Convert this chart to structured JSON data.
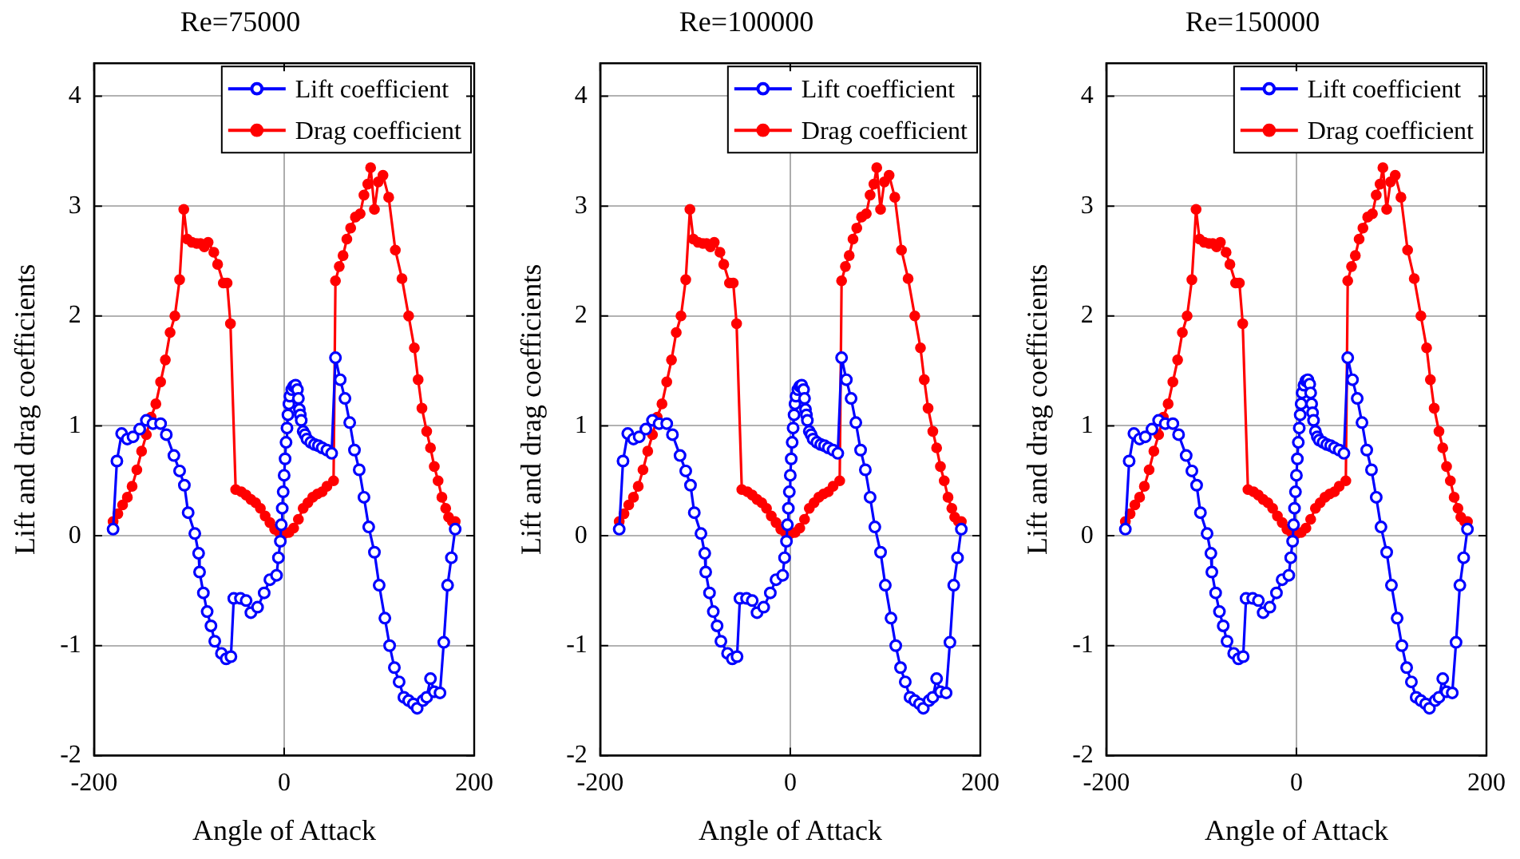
{
  "chart_data": [
    {
      "type": "line",
      "title": "Re=75000",
      "xlabel": "Angle of Attack",
      "ylabel": "Lift and drag coefficients",
      "xlim": [
        -200,
        200
      ],
      "xticks": [
        -200,
        0,
        200
      ],
      "ylim": [
        -2,
        4.3
      ],
      "yticks": [
        -2,
        -1,
        0,
        1,
        2,
        3,
        4
      ],
      "grid": true,
      "legend": "top right",
      "marker": "circle",
      "series": [
        {
          "name": "Lift coefficient",
          "color": "#0000ff",
          "x": [
            -180,
            -176,
            -171,
            -165,
            -159,
            -152,
            -145,
            -138,
            -130,
            -124,
            -116,
            -110,
            -105,
            -101,
            -94,
            -90,
            -89,
            -85,
            -81,
            -77,
            -73,
            -66,
            -61,
            -56,
            -53,
            -46,
            -40,
            -35,
            -28,
            -21,
            -15,
            -8,
            -6,
            -4,
            -3,
            -2,
            -1,
            0,
            1,
            2,
            3,
            4,
            5,
            6,
            8,
            10,
            12,
            14,
            15,
            16,
            17,
            18,
            20,
            22,
            24,
            28,
            32,
            36,
            40,
            45,
            50,
            54,
            59,
            64,
            69,
            74,
            79,
            84,
            89,
            95,
            100,
            106,
            111,
            116,
            121,
            126,
            131,
            136,
            140,
            146,
            150,
            154,
            158,
            164,
            168,
            172,
            176,
            180
          ],
          "values": [
            0.06,
            0.68,
            0.93,
            0.88,
            0.9,
            0.97,
            1.05,
            1.02,
            1.02,
            0.92,
            0.73,
            0.59,
            0.46,
            0.21,
            0.02,
            -0.16,
            -0.33,
            -0.52,
            -0.69,
            -0.82,
            -0.96,
            -1.07,
            -1.12,
            -1.1,
            -0.57,
            -0.57,
            -0.59,
            -0.7,
            -0.65,
            -0.52,
            -0.4,
            -0.36,
            -0.2,
            -0.05,
            0.1,
            0.25,
            0.4,
            0.55,
            0.7,
            0.85,
            0.98,
            1.1,
            1.2,
            1.27,
            1.33,
            1.36,
            1.37,
            1.33,
            1.25,
            1.15,
            1.1,
            1.05,
            0.95,
            0.92,
            0.88,
            0.85,
            0.83,
            0.82,
            0.8,
            0.78,
            0.75,
            1.62,
            1.42,
            1.25,
            1.03,
            0.78,
            0.6,
            0.35,
            0.08,
            -0.15,
            -0.45,
            -0.75,
            -1.0,
            -1.2,
            -1.33,
            -1.47,
            -1.5,
            -1.53,
            -1.57,
            -1.5,
            -1.47,
            -1.3,
            -1.42,
            -1.43,
            -0.97,
            -0.45,
            -0.2,
            0.06
          ]
        },
        {
          "name": "Drag coefficient",
          "color": "#ff0000",
          "x": [
            -180,
            -175,
            -170,
            -165,
            -160,
            -155,
            -150,
            -145,
            -140,
            -135,
            -130,
            -125,
            -120,
            -115,
            -110,
            -105.6,
            -102,
            -97,
            -92,
            -88,
            -84,
            -80,
            -74,
            -70,
            -64,
            -60,
            -56.5,
            -51,
            -45,
            -40,
            -35,
            -30,
            -25,
            -20,
            -15,
            -10,
            -5,
            0,
            5,
            10,
            15,
            20,
            25,
            30,
            35,
            40,
            45,
            52,
            54,
            58,
            62,
            66,
            70,
            75,
            80,
            84,
            88,
            91,
            95,
            99,
            104,
            110,
            117,
            124,
            131,
            137,
            141,
            145,
            150,
            154,
            158,
            162,
            166,
            170,
            173,
            177,
            180
          ],
          "values": [
            0.13,
            0.2,
            0.28,
            0.35,
            0.45,
            0.6,
            0.77,
            0.92,
            1.08,
            1.2,
            1.4,
            1.6,
            1.85,
            2.0,
            2.33,
            2.97,
            2.7,
            2.67,
            2.66,
            2.66,
            2.63,
            2.67,
            2.58,
            2.47,
            2.3,
            2.3,
            1.93,
            0.42,
            0.4,
            0.37,
            0.33,
            0.3,
            0.25,
            0.18,
            0.12,
            0.06,
            0.03,
            0.02,
            0.03,
            0.07,
            0.15,
            0.25,
            0.3,
            0.35,
            0.38,
            0.4,
            0.45,
            0.5,
            2.32,
            2.45,
            2.55,
            2.7,
            2.8,
            2.9,
            2.93,
            3.1,
            3.2,
            3.35,
            2.97,
            3.22,
            3.28,
            3.08,
            2.6,
            2.34,
            2.0,
            1.71,
            1.42,
            1.16,
            0.95,
            0.8,
            0.63,
            0.5,
            0.35,
            0.25,
            0.17,
            0.13,
            0.13
          ]
        }
      ]
    },
    {
      "type": "line",
      "title": "Re=100000",
      "xlabel": "Angle of Attack",
      "ylabel": "Lift and drag coefficients",
      "xlim": [
        -200,
        200
      ],
      "xticks": [
        -200,
        0,
        200
      ],
      "ylim": [
        -2,
        4.3
      ],
      "yticks": [
        -2,
        -1,
        0,
        1,
        2,
        3,
        4
      ],
      "grid": true,
      "legend": "top right",
      "marker": "circle",
      "series": [
        {
          "name": "Lift coefficient",
          "color": "#0000ff",
          "x": [
            -180,
            -176,
            -171,
            -165,
            -159,
            -152,
            -145,
            -138,
            -130,
            -124,
            -116,
            -110,
            -105,
            -101,
            -94,
            -90,
            -89,
            -85,
            -81,
            -77,
            -73,
            -66,
            -61,
            -56,
            -53,
            -46,
            -40,
            -35,
            -28,
            -21,
            -15,
            -8,
            -6,
            -4,
            -3,
            -2,
            -1,
            0,
            1,
            2,
            3,
            4,
            5,
            6,
            8,
            10,
            12,
            14,
            15,
            16,
            17,
            18,
            20,
            22,
            24,
            28,
            32,
            36,
            40,
            45,
            50,
            54,
            59,
            64,
            69,
            74,
            79,
            84,
            89,
            95,
            100,
            106,
            111,
            116,
            121,
            126,
            131,
            136,
            140,
            146,
            150,
            154,
            158,
            164,
            168,
            172,
            176,
            180
          ],
          "values": [
            0.06,
            0.68,
            0.93,
            0.88,
            0.9,
            0.97,
            1.05,
            1.02,
            1.02,
            0.92,
            0.73,
            0.59,
            0.46,
            0.21,
            0.02,
            -0.16,
            -0.33,
            -0.52,
            -0.69,
            -0.82,
            -0.96,
            -1.07,
            -1.12,
            -1.1,
            -0.57,
            -0.57,
            -0.59,
            -0.7,
            -0.65,
            -0.52,
            -0.4,
            -0.36,
            -0.2,
            -0.05,
            0.1,
            0.25,
            0.4,
            0.55,
            0.7,
            0.85,
            0.98,
            1.1,
            1.2,
            1.27,
            1.33,
            1.36,
            1.37,
            1.33,
            1.25,
            1.15,
            1.1,
            1.05,
            0.95,
            0.92,
            0.88,
            0.85,
            0.83,
            0.82,
            0.8,
            0.78,
            0.75,
            1.62,
            1.42,
            1.25,
            1.03,
            0.78,
            0.6,
            0.35,
            0.08,
            -0.15,
            -0.45,
            -0.75,
            -1.0,
            -1.2,
            -1.33,
            -1.47,
            -1.5,
            -1.53,
            -1.57,
            -1.5,
            -1.47,
            -1.3,
            -1.42,
            -1.43,
            -0.97,
            -0.45,
            -0.2,
            0.06
          ]
        },
        {
          "name": "Drag coefficient",
          "color": "#ff0000",
          "x": [
            -180,
            -175,
            -170,
            -165,
            -160,
            -155,
            -150,
            -145,
            -140,
            -135,
            -130,
            -125,
            -120,
            -115,
            -110,
            -105.6,
            -102,
            -97,
            -92,
            -88,
            -84,
            -80,
            -74,
            -70,
            -64,
            -60,
            -56.5,
            -51,
            -45,
            -40,
            -35,
            -30,
            -25,
            -20,
            -15,
            -10,
            -5,
            0,
            5,
            10,
            15,
            20,
            25,
            30,
            35,
            40,
            45,
            52,
            54,
            58,
            62,
            66,
            70,
            75,
            80,
            84,
            88,
            91,
            95,
            99,
            104,
            110,
            117,
            124,
            131,
            137,
            141,
            145,
            150,
            154,
            158,
            162,
            166,
            170,
            173,
            177,
            180
          ],
          "values": [
            0.13,
            0.2,
            0.28,
            0.35,
            0.45,
            0.6,
            0.77,
            0.92,
            1.08,
            1.2,
            1.4,
            1.6,
            1.85,
            2.0,
            2.33,
            2.97,
            2.7,
            2.67,
            2.66,
            2.66,
            2.63,
            2.67,
            2.58,
            2.47,
            2.3,
            2.3,
            1.93,
            0.42,
            0.4,
            0.37,
            0.33,
            0.3,
            0.25,
            0.18,
            0.12,
            0.06,
            0.03,
            0.02,
            0.03,
            0.07,
            0.15,
            0.25,
            0.3,
            0.35,
            0.38,
            0.4,
            0.45,
            0.5,
            2.32,
            2.45,
            2.55,
            2.7,
            2.8,
            2.9,
            2.93,
            3.1,
            3.2,
            3.35,
            2.97,
            3.22,
            3.28,
            3.08,
            2.6,
            2.34,
            2.0,
            1.71,
            1.42,
            1.16,
            0.95,
            0.8,
            0.63,
            0.5,
            0.35,
            0.25,
            0.17,
            0.13,
            0.13
          ]
        }
      ]
    },
    {
      "type": "line",
      "title": "Re=150000",
      "xlabel": "Angle of Attack",
      "ylabel": "Lift and drag coefficients",
      "xlim": [
        -200,
        200
      ],
      "xticks": [
        -200,
        0,
        200
      ],
      "ylim": [
        -2,
        4.3
      ],
      "yticks": [
        -2,
        -1,
        0,
        1,
        2,
        3,
        4
      ],
      "grid": true,
      "legend": "top right",
      "marker": "circle",
      "series": [
        {
          "name": "Lift coefficient",
          "color": "#0000ff",
          "x": [
            -180,
            -176,
            -171,
            -165,
            -159,
            -152,
            -145,
            -138,
            -130,
            -124,
            -116,
            -110,
            -105,
            -101,
            -94,
            -90,
            -89,
            -85,
            -81,
            -77,
            -73,
            -66,
            -61,
            -56,
            -53,
            -46,
            -40,
            -35,
            -28,
            -21,
            -15,
            -8,
            -6,
            -4,
            -3,
            -2,
            -1,
            0,
            1,
            2,
            3,
            4,
            5,
            6,
            8,
            10,
            12,
            14,
            15,
            16,
            17,
            18,
            20,
            22,
            24,
            28,
            32,
            36,
            40,
            45,
            50,
            54,
            59,
            64,
            69,
            74,
            79,
            84,
            89,
            95,
            100,
            106,
            111,
            116,
            121,
            126,
            131,
            136,
            140,
            146,
            150,
            154,
            158,
            164,
            168,
            172,
            176,
            180
          ],
          "values": [
            0.06,
            0.68,
            0.93,
            0.88,
            0.9,
            0.97,
            1.05,
            1.02,
            1.02,
            0.92,
            0.73,
            0.59,
            0.46,
            0.21,
            0.02,
            -0.16,
            -0.33,
            -0.52,
            -0.69,
            -0.82,
            -0.96,
            -1.07,
            -1.12,
            -1.1,
            -0.57,
            -0.57,
            -0.59,
            -0.7,
            -0.65,
            -0.52,
            -0.4,
            -0.36,
            -0.2,
            -0.05,
            0.1,
            0.25,
            0.4,
            0.55,
            0.7,
            0.85,
            0.98,
            1.1,
            1.2,
            1.3,
            1.37,
            1.41,
            1.42,
            1.38,
            1.3,
            1.2,
            1.12,
            1.05,
            0.95,
            0.9,
            0.87,
            0.85,
            0.83,
            0.82,
            0.8,
            0.78,
            0.75,
            1.62,
            1.42,
            1.25,
            1.03,
            0.78,
            0.6,
            0.35,
            0.08,
            -0.15,
            -0.45,
            -0.75,
            -1.0,
            -1.2,
            -1.33,
            -1.47,
            -1.5,
            -1.53,
            -1.57,
            -1.5,
            -1.47,
            -1.3,
            -1.42,
            -1.43,
            -0.97,
            -0.45,
            -0.2,
            0.06
          ]
        },
        {
          "name": "Drag coefficient",
          "color": "#ff0000",
          "x": [
            -180,
            -175,
            -170,
            -165,
            -160,
            -155,
            -150,
            -145,
            -140,
            -135,
            -130,
            -125,
            -120,
            -115,
            -110,
            -105.6,
            -102,
            -97,
            -92,
            -88,
            -84,
            -80,
            -74,
            -70,
            -64,
            -60,
            -56.5,
            -51,
            -45,
            -40,
            -35,
            -30,
            -25,
            -20,
            -15,
            -10,
            -5,
            0,
            5,
            10,
            15,
            20,
            25,
            30,
            35,
            40,
            45,
            52,
            54,
            58,
            62,
            66,
            70,
            75,
            80,
            84,
            88,
            91,
            95,
            99,
            104,
            110,
            117,
            124,
            131,
            137,
            141,
            145,
            150,
            154,
            158,
            162,
            166,
            170,
            173,
            177,
            180
          ],
          "values": [
            0.13,
            0.2,
            0.28,
            0.35,
            0.45,
            0.6,
            0.77,
            0.92,
            1.08,
            1.2,
            1.4,
            1.6,
            1.85,
            2.0,
            2.33,
            2.97,
            2.7,
            2.67,
            2.66,
            2.66,
            2.63,
            2.67,
            2.58,
            2.47,
            2.3,
            2.3,
            1.93,
            0.42,
            0.4,
            0.37,
            0.33,
            0.3,
            0.25,
            0.18,
            0.12,
            0.06,
            0.03,
            0.02,
            0.03,
            0.07,
            0.15,
            0.25,
            0.3,
            0.35,
            0.38,
            0.4,
            0.45,
            0.5,
            2.32,
            2.45,
            2.55,
            2.7,
            2.8,
            2.9,
            2.93,
            3.1,
            3.2,
            3.35,
            2.97,
            3.22,
            3.28,
            3.08,
            2.6,
            2.34,
            2.0,
            1.71,
            1.42,
            1.16,
            0.95,
            0.8,
            0.63,
            0.5,
            0.35,
            0.25,
            0.17,
            0.13,
            0.13
          ]
        }
      ]
    }
  ]
}
